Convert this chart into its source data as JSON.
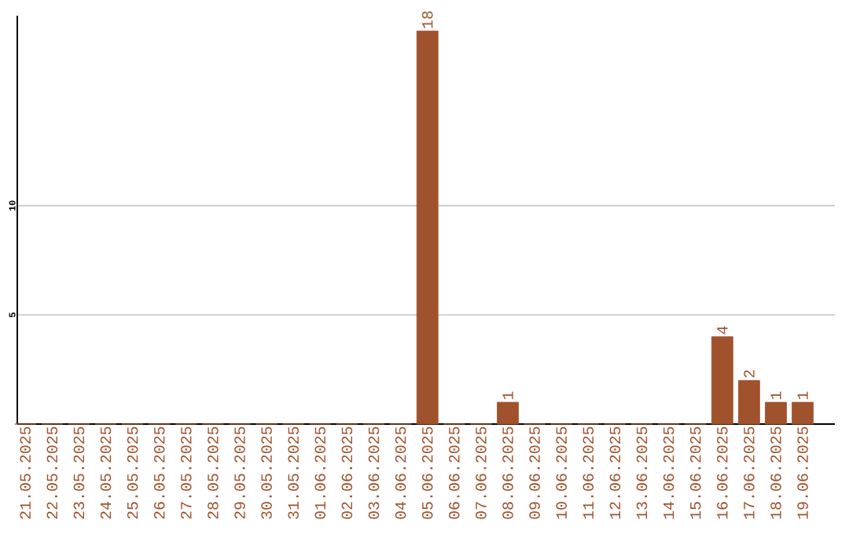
{
  "chart_data": {
    "type": "bar",
    "categories": [
      "21.05.2025",
      "22.05.2025",
      "23.05.2025",
      "24.05.2025",
      "25.05.2025",
      "26.05.2025",
      "27.05.2025",
      "28.05.2025",
      "29.05.2025",
      "30.05.2025",
      "31.05.2025",
      "01.06.2025",
      "02.06.2025",
      "03.06.2025",
      "04.06.2025",
      "05.06.2025",
      "06.06.2025",
      "07.06.2025",
      "08.06.2025",
      "09.06.2025",
      "10.06.2025",
      "11.06.2025",
      "12.06.2025",
      "13.06.2025",
      "14.06.2025",
      "15.06.2025",
      "16.06.2025",
      "17.06.2025",
      "18.06.2025",
      "19.06.2025"
    ],
    "values": [
      0,
      0,
      0,
      0,
      0,
      0,
      0,
      0,
      0,
      0,
      0,
      0,
      0,
      0,
      0,
      18,
      0,
      0,
      1,
      0,
      0,
      0,
      0,
      0,
      0,
      0,
      4,
      2,
      1,
      1
    ],
    "value_labels": [
      null,
      null,
      null,
      null,
      null,
      null,
      null,
      null,
      null,
      null,
      null,
      null,
      null,
      null,
      null,
      "18",
      null,
      null,
      "1",
      null,
      null,
      null,
      null,
      null,
      null,
      null,
      "4",
      "2",
      "1",
      "1"
    ],
    "color": "#a0522d",
    "ylim": [
      0,
      18.7
    ],
    "yticks": [
      5,
      10
    ],
    "grid": "y"
  }
}
